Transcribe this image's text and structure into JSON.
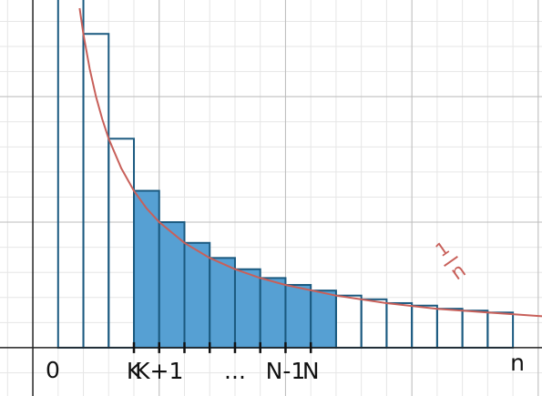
{
  "chart_data": {
    "type": "riemann",
    "xlim": [
      -1.3,
      20.15
    ],
    "ylim": [
      -0.077,
      0.554
    ],
    "grid": {
      "major_x": [
        5,
        10,
        15,
        20
      ],
      "major_y": [
        0.2,
        0.4
      ],
      "minor_x_step": 1,
      "minor_y_step": 0.04
    },
    "bars": {
      "x": [
        1,
        2,
        3,
        4,
        5,
        6,
        7,
        8,
        9,
        10,
        11,
        12,
        13,
        14,
        15,
        16,
        17,
        18
      ],
      "values": [
        1,
        0.5,
        0.333,
        0.25,
        0.2,
        0.167,
        0.143,
        0.125,
        0.111,
        0.1,
        0.091,
        0.083,
        0.077,
        0.071,
        0.067,
        0.062,
        0.059,
        0.056
      ],
      "colors": [
        "none",
        "none",
        "none",
        "#56a0d3",
        "#56a0d3",
        "#56a0d3",
        "#56a0d3",
        "#56a0d3",
        "#56a0d3",
        "#56a0d3",
        "#56a0d3",
        "none",
        "none",
        "none",
        "none",
        "none",
        "none",
        "none"
      ],
      "stroke": "#1b5a80"
    },
    "curve": {
      "color": "#c8605a",
      "x": [
        1.85,
        2,
        2.25,
        2.5,
        2.75,
        3,
        3.5,
        4,
        4.5,
        5,
        6,
        7,
        8,
        9,
        10,
        12,
        14,
        16,
        18,
        20.15
      ],
      "values": [
        0.541,
        0.5,
        0.444,
        0.4,
        0.364,
        0.333,
        0.286,
        0.25,
        0.222,
        0.2,
        0.167,
        0.143,
        0.125,
        0.111,
        0.1,
        0.083,
        0.071,
        0.062,
        0.056,
        0.05
      ],
      "label_numerator": "1",
      "label_denominator": "n"
    },
    "xticks": [
      4,
      5,
      6,
      7,
      8,
      9,
      10,
      11
    ],
    "xtick_labels": [
      {
        "value": 4,
        "label": "K"
      },
      {
        "value": 5,
        "label": "K+1"
      },
      {
        "value": 8,
        "label": "..."
      },
      {
        "value": 10,
        "label": "N-1"
      },
      {
        "value": 11,
        "label": "N"
      }
    ],
    "origin_label": "0",
    "xlabel": "n"
  }
}
